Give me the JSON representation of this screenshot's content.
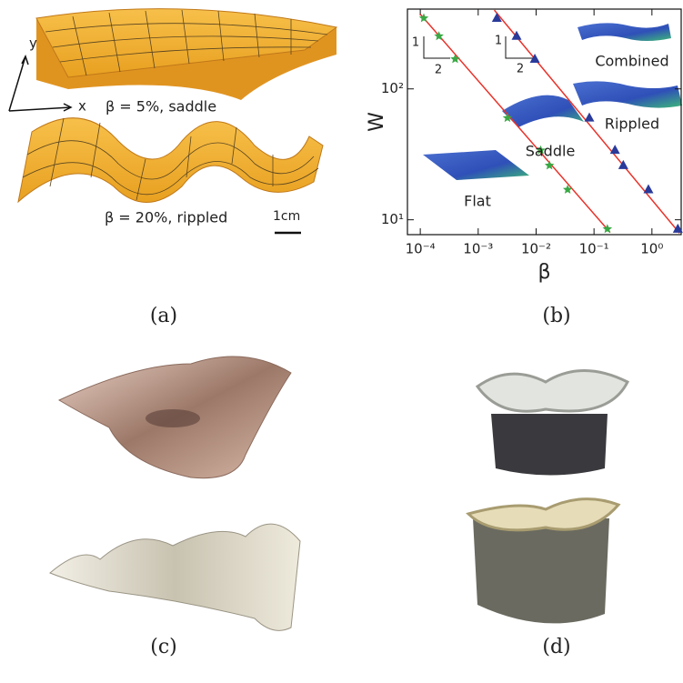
{
  "panels": {
    "a": {
      "caption": "(a)",
      "axis_y": "y",
      "axis_x": "x",
      "label_top": "β = 5%, saddle",
      "label_bottom": "β = 20%, rippled",
      "scale_bar": "1cm"
    },
    "b": {
      "caption": "(b)"
    },
    "c": {
      "caption": "(c)"
    },
    "d": {
      "caption": "(d)"
    }
  },
  "chart_data": {
    "type": "scatter",
    "xlabel": "β",
    "ylabel": "W",
    "xlog": true,
    "ylog": true,
    "xlim": [
      6e-05,
      3.2
    ],
    "ylim": [
      7.7,
      407
    ],
    "xticks": [
      {
        "value": 0.0001,
        "label": "10⁻⁴"
      },
      {
        "value": 0.001,
        "label": "10⁻³"
      },
      {
        "value": 0.01,
        "label": "10⁻²"
      },
      {
        "value": 0.1,
        "label": "10⁻¹"
      },
      {
        "value": 1,
        "label": "10⁰"
      }
    ],
    "yticks": [
      {
        "value": 10,
        "label": "10¹"
      },
      {
        "value": 100,
        "label": "10²"
      }
    ],
    "series": [
      {
        "marker": "line",
        "color": "#e8322a",
        "x": [
          0.0001,
          0.19
        ],
        "values": [
          372,
          8
        ]
      },
      {
        "marker": "line",
        "color": "#e8322a",
        "x": [
          0.0019,
          3.0
        ],
        "values": [
          400,
          7.9
        ]
      },
      {
        "marker": "star",
        "color": "#3aa845",
        "x": [
          0.000115,
          0.00021,
          0.0004,
          0.0032,
          0.012,
          0.017,
          0.035,
          0.17
        ],
        "values": [
          347,
          253,
          169,
          60,
          34,
          26,
          17,
          8.5
        ]
      },
      {
        "marker": "triangle",
        "color": "#2a3a9a",
        "x": [
          0.0021,
          0.0046,
          0.0095,
          0.083,
          0.23,
          0.32,
          0.87,
          2.8
        ],
        "values": [
          347,
          253,
          169,
          60,
          34,
          26,
          17,
          8.5
        ]
      }
    ],
    "annotations": [
      "Combined",
      "Rippled",
      "Saddle",
      "Flat",
      "1",
      "2",
      "1",
      "2"
    ]
  }
}
